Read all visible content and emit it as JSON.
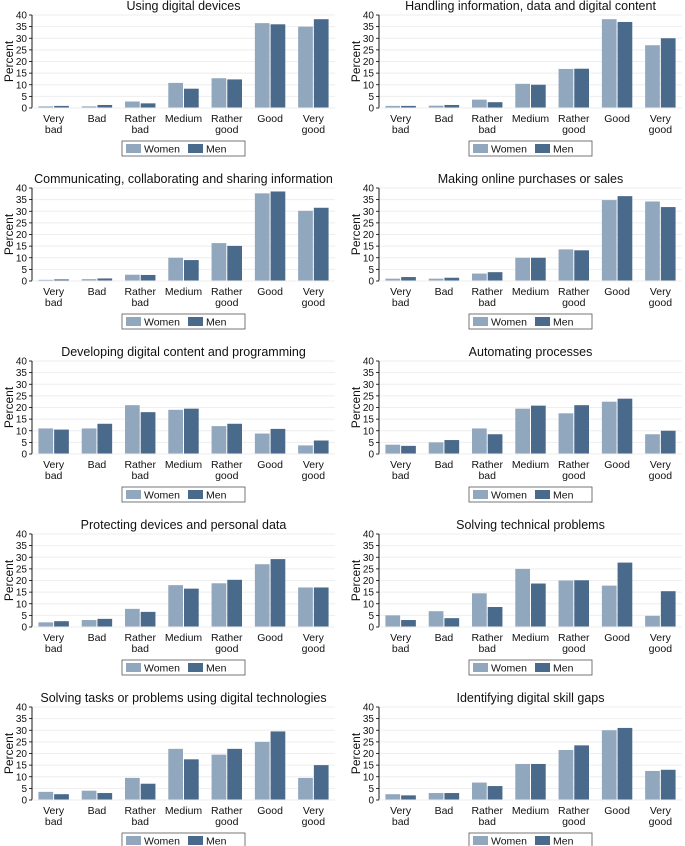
{
  "colors": {
    "women": "#91a7bd",
    "men": "#4a6a8b",
    "grid": "#eeeeee",
    "axis": "#000000",
    "text": "#111111"
  },
  "chart_data": [
    {
      "type": "bar",
      "title": "Using digital devices",
      "ylabel": "Percent",
      "ylim": [
        0,
        40
      ],
      "yticks": [
        0,
        5,
        10,
        15,
        20,
        25,
        30,
        35,
        40
      ],
      "categories": [
        "Very bad",
        "Bad",
        "Rather bad",
        "Medium",
        "Rather good",
        "Good",
        "Very good"
      ],
      "series": [
        {
          "name": "Women",
          "values": [
            0.7,
            0.7,
            2.8,
            10.8,
            12.8,
            36.5,
            35.0
          ]
        },
        {
          "name": "Men",
          "values": [
            0.9,
            1.3,
            2.0,
            8.3,
            12.3,
            36.0,
            38.2
          ]
        }
      ]
    },
    {
      "type": "bar",
      "title": "Handling information, data and digital content",
      "ylabel": "Percent",
      "ylim": [
        0,
        40
      ],
      "yticks": [
        0,
        5,
        10,
        15,
        20,
        25,
        30,
        35,
        40
      ],
      "categories": [
        "Very bad",
        "Bad",
        "Rather bad",
        "Medium",
        "Rather good",
        "Good",
        "Very good"
      ],
      "series": [
        {
          "name": "Women",
          "values": [
            0.9,
            1.0,
            3.6,
            10.4,
            16.8,
            38.2,
            27.0
          ]
        },
        {
          "name": "Men",
          "values": [
            0.9,
            1.3,
            2.5,
            10.0,
            16.9,
            37.0,
            30.0
          ]
        }
      ]
    },
    {
      "type": "bar",
      "title": "Communicating, collaborating and sharing information",
      "ylabel": "Percent",
      "ylim": [
        0,
        40
      ],
      "yticks": [
        0,
        5,
        10,
        15,
        20,
        25,
        30,
        35,
        40
      ],
      "categories": [
        "Very bad",
        "Bad",
        "Rather bad",
        "Medium",
        "Rather good",
        "Good",
        "Very good"
      ],
      "series": [
        {
          "name": "Women",
          "values": [
            0.5,
            0.8,
            2.7,
            10.0,
            16.3,
            37.7,
            30.2
          ]
        },
        {
          "name": "Men",
          "values": [
            0.7,
            1.1,
            2.6,
            9.0,
            15.1,
            38.5,
            31.5
          ]
        }
      ]
    },
    {
      "type": "bar",
      "title": "Making online purchases or sales",
      "ylabel": "Percent",
      "ylim": [
        0,
        40
      ],
      "yticks": [
        0,
        5,
        10,
        15,
        20,
        25,
        30,
        35,
        40
      ],
      "categories": [
        "Very bad",
        "Bad",
        "Rather bad",
        "Medium",
        "Rather good",
        "Good",
        "Very good"
      ],
      "series": [
        {
          "name": "Women",
          "values": [
            1.0,
            1.0,
            3.2,
            10.0,
            13.6,
            34.8,
            34.2
          ]
        },
        {
          "name": "Men",
          "values": [
            1.7,
            1.4,
            3.8,
            10.0,
            13.2,
            36.5,
            31.8
          ]
        }
      ]
    },
    {
      "type": "bar",
      "title": "Developing digital content and programming",
      "ylabel": "Percent",
      "ylim": [
        0,
        40
      ],
      "yticks": [
        0,
        5,
        10,
        15,
        20,
        25,
        30,
        35,
        40
      ],
      "categories": [
        "Very bad",
        "Bad",
        "Rather bad",
        "Medium",
        "Rather good",
        "Good",
        "Very good"
      ],
      "series": [
        {
          "name": "Women",
          "values": [
            11.0,
            11.0,
            21.0,
            19.0,
            12.0,
            8.8,
            3.7
          ]
        },
        {
          "name": "Men",
          "values": [
            10.5,
            13.0,
            18.0,
            19.5,
            13.0,
            10.8,
            5.8
          ]
        }
      ]
    },
    {
      "type": "bar",
      "title": "Automating processes",
      "ylabel": "Percent",
      "ylim": [
        0,
        40
      ],
      "yticks": [
        0,
        5,
        10,
        15,
        20,
        25,
        30,
        35,
        40
      ],
      "categories": [
        "Very bad",
        "Bad",
        "Rather bad",
        "Medium",
        "Rather good",
        "Good",
        "Very good"
      ],
      "series": [
        {
          "name": "Women",
          "values": [
            4.0,
            5.0,
            11.0,
            19.5,
            17.5,
            22.5,
            8.5
          ]
        },
        {
          "name": "Men",
          "values": [
            3.5,
            6.0,
            8.5,
            20.8,
            21.0,
            23.8,
            10.0
          ]
        }
      ]
    },
    {
      "type": "bar",
      "title": "Protecting devices and personal data",
      "ylabel": "Percent",
      "ylim": [
        0,
        40
      ],
      "yticks": [
        0,
        5,
        10,
        15,
        20,
        25,
        30,
        35,
        40
      ],
      "categories": [
        "Very bad",
        "Bad",
        "Rather bad",
        "Medium",
        "Rather good",
        "Good",
        "Very good"
      ],
      "series": [
        {
          "name": "Women",
          "values": [
            2.0,
            3.0,
            7.8,
            18.0,
            18.8,
            27.0,
            17.0
          ]
        },
        {
          "name": "Men",
          "values": [
            2.5,
            3.5,
            6.5,
            16.5,
            20.3,
            29.2,
            17.0
          ]
        }
      ]
    },
    {
      "type": "bar",
      "title": "Solving technical problems",
      "ylabel": "Percent",
      "ylim": [
        0,
        40
      ],
      "yticks": [
        0,
        5,
        10,
        15,
        20,
        25,
        30,
        35,
        40
      ],
      "categories": [
        "Very bad",
        "Bad",
        "Rather bad",
        "Medium",
        "Rather good",
        "Good",
        "Very good"
      ],
      "series": [
        {
          "name": "Women",
          "values": [
            5.0,
            6.8,
            14.5,
            25.0,
            20.0,
            17.8,
            4.8
          ]
        },
        {
          "name": "Men",
          "values": [
            3.0,
            3.8,
            8.6,
            18.7,
            20.1,
            27.7,
            15.4
          ]
        }
      ]
    },
    {
      "type": "bar",
      "title": "Solving tasks or problems using digital technologies",
      "ylabel": "Percent",
      "ylim": [
        0,
        40
      ],
      "yticks": [
        0,
        5,
        10,
        15,
        20,
        25,
        30,
        35,
        40
      ],
      "categories": [
        "Very bad",
        "Bad",
        "Rather bad",
        "Medium",
        "Rather good",
        "Good",
        "Very good"
      ],
      "series": [
        {
          "name": "Women",
          "values": [
            3.5,
            4.0,
            9.5,
            22.0,
            19.5,
            25.0,
            9.5
          ]
        },
        {
          "name": "Men",
          "values": [
            2.5,
            3.0,
            7.0,
            17.5,
            22.0,
            29.5,
            15.0
          ]
        }
      ]
    },
    {
      "type": "bar",
      "title": "Identifying digital skill gaps",
      "ylabel": "Percent",
      "ylim": [
        0,
        40
      ],
      "yticks": [
        0,
        5,
        10,
        15,
        20,
        25,
        30,
        35,
        40
      ],
      "categories": [
        "Very bad",
        "Bad",
        "Rather bad",
        "Medium",
        "Rather good",
        "Good",
        "Very good"
      ],
      "series": [
        {
          "name": "Women",
          "values": [
            2.5,
            3.0,
            7.5,
            15.5,
            21.5,
            30.0,
            12.5
          ]
        },
        {
          "name": "Men",
          "values": [
            2.0,
            3.0,
            6.0,
            15.5,
            23.5,
            31.0,
            13.0
          ]
        }
      ]
    }
  ]
}
